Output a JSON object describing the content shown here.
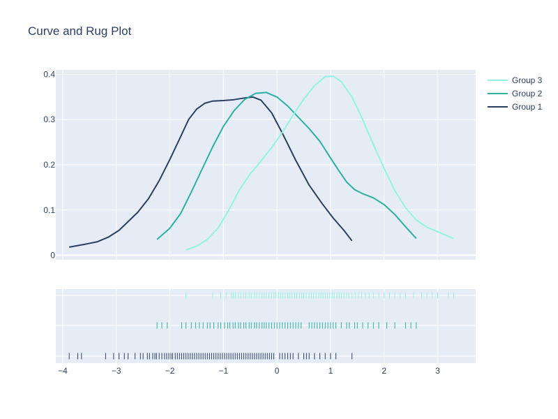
{
  "chart_data": {
    "type": "line",
    "title": "Curve and Rug Plot",
    "xlim": [
      -4.13,
      3.71
    ],
    "ylim": [
      -0.01,
      0.41
    ],
    "x_ticks": [
      -4,
      -3,
      -2,
      -1,
      0,
      1,
      2,
      3
    ],
    "y_ticks": [
      0,
      0.1,
      0.2,
      0.3,
      0.4
    ],
    "y_tick_labels": [
      "0",
      "0.1",
      "0.2",
      "0.3",
      "0.4"
    ],
    "grid": true,
    "legend_position": "top-right",
    "series": [
      {
        "name": "Group 1",
        "color": "#2a3f5f",
        "x": [
          -3.88,
          -3.6,
          -3.35,
          -3.15,
          -2.95,
          -2.8,
          -2.6,
          -2.4,
          -2.2,
          -2.0,
          -1.8,
          -1.65,
          -1.5,
          -1.35,
          -1.2,
          -1.0,
          -0.8,
          -0.6,
          -0.45,
          -0.3,
          -0.1,
          0.1,
          0.35,
          0.6,
          0.85,
          1.05,
          1.25,
          1.4
        ],
        "y": [
          0.018,
          0.024,
          0.03,
          0.04,
          0.055,
          0.072,
          0.095,
          0.125,
          0.165,
          0.212,
          0.262,
          0.3,
          0.323,
          0.336,
          0.341,
          0.342,
          0.344,
          0.348,
          0.35,
          0.343,
          0.315,
          0.27,
          0.21,
          0.155,
          0.113,
          0.082,
          0.055,
          0.032
        ]
      },
      {
        "name": "Group 2",
        "color": "#2bb19e",
        "x": [
          -2.24,
          -2.0,
          -1.8,
          -1.6,
          -1.4,
          -1.2,
          -1.0,
          -0.8,
          -0.6,
          -0.4,
          -0.2,
          0.0,
          0.2,
          0.4,
          0.6,
          0.8,
          1.0,
          1.15,
          1.3,
          1.45,
          1.6,
          1.8,
          2.0,
          2.2,
          2.4,
          2.6
        ],
        "y": [
          0.035,
          0.06,
          0.092,
          0.14,
          0.19,
          0.24,
          0.285,
          0.32,
          0.345,
          0.358,
          0.36,
          0.35,
          0.33,
          0.305,
          0.28,
          0.252,
          0.215,
          0.188,
          0.162,
          0.145,
          0.136,
          0.127,
          0.112,
          0.09,
          0.063,
          0.037
        ]
      },
      {
        "name": "Group 3",
        "color": "#93f3e1",
        "x": [
          -1.7,
          -1.5,
          -1.3,
          -1.1,
          -0.9,
          -0.7,
          -0.5,
          -0.3,
          -0.1,
          0.1,
          0.3,
          0.5,
          0.7,
          0.9,
          1.05,
          1.2,
          1.4,
          1.6,
          1.8,
          2.0,
          2.2,
          2.4,
          2.6,
          2.8,
          3.0,
          3.2,
          3.3
        ],
        "y": [
          0.012,
          0.02,
          0.035,
          0.06,
          0.1,
          0.145,
          0.18,
          0.208,
          0.238,
          0.272,
          0.31,
          0.345,
          0.375,
          0.395,
          0.396,
          0.384,
          0.35,
          0.3,
          0.245,
          0.192,
          0.143,
          0.105,
          0.078,
          0.062,
          0.052,
          0.042,
          0.037
        ]
      }
    ],
    "rug": [
      {
        "name": "Group 3",
        "color": "#93f3e1",
        "x": [
          -1.7,
          -1.2,
          -1.05,
          -0.95,
          -0.85,
          -0.82,
          -0.78,
          -0.72,
          -0.68,
          -0.62,
          -0.58,
          -0.52,
          -0.48,
          -0.42,
          -0.38,
          -0.33,
          -0.28,
          -0.24,
          -0.2,
          -0.15,
          -0.1,
          -0.06,
          -0.02,
          0.03,
          0.07,
          0.11,
          0.15,
          0.2,
          0.24,
          0.28,
          0.33,
          0.37,
          0.42,
          0.46,
          0.5,
          0.55,
          0.6,
          0.64,
          0.68,
          0.73,
          0.78,
          0.82,
          0.86,
          0.9,
          0.94,
          0.98,
          1.03,
          1.07,
          1.12,
          1.16,
          1.2,
          1.25,
          1.3,
          1.34,
          1.4,
          1.46,
          1.52,
          1.58,
          1.65,
          1.72,
          1.8,
          1.9,
          2.0,
          2.1,
          2.2,
          2.3,
          2.4,
          2.55,
          2.7,
          2.8,
          2.9,
          3.0,
          3.2,
          3.3
        ]
      },
      {
        "name": "Group 2",
        "color": "#2bb19e",
        "x": [
          -2.24,
          -2.15,
          -2.05,
          -1.78,
          -1.7,
          -1.6,
          -1.52,
          -1.45,
          -1.38,
          -1.3,
          -1.25,
          -1.18,
          -1.1,
          -1.05,
          -0.98,
          -0.92,
          -0.88,
          -0.82,
          -0.78,
          -0.72,
          -0.68,
          -0.62,
          -0.58,
          -0.52,
          -0.48,
          -0.42,
          -0.38,
          -0.33,
          -0.28,
          -0.24,
          -0.2,
          -0.15,
          -0.1,
          -0.05,
          0.0,
          0.05,
          0.1,
          0.15,
          0.2,
          0.25,
          0.3,
          0.35,
          0.4,
          0.45,
          0.6,
          0.65,
          0.7,
          0.75,
          0.8,
          0.85,
          0.9,
          0.95,
          1.0,
          1.05,
          1.1,
          1.2,
          1.3,
          1.35,
          1.45,
          1.5,
          1.6,
          1.7,
          1.8,
          1.9,
          2.05,
          2.2,
          2.4,
          2.5,
          2.6
        ]
      },
      {
        "name": "Group 1",
        "color": "#2a3f5f",
        "x": [
          -3.88,
          -3.72,
          -3.65,
          -3.2,
          -3.05,
          -2.95,
          -2.85,
          -2.78,
          -2.65,
          -2.55,
          -2.5,
          -2.42,
          -2.38,
          -2.32,
          -2.28,
          -2.25,
          -2.2,
          -2.15,
          -2.1,
          -2.06,
          -2.02,
          -1.98,
          -1.95,
          -1.9,
          -1.86,
          -1.82,
          -1.78,
          -1.74,
          -1.7,
          -1.66,
          -1.62,
          -1.58,
          -1.54,
          -1.5,
          -1.46,
          -1.42,
          -1.38,
          -1.34,
          -1.3,
          -1.26,
          -1.22,
          -1.18,
          -1.14,
          -1.1,
          -1.06,
          -1.02,
          -0.98,
          -0.94,
          -0.9,
          -0.86,
          -0.82,
          -0.78,
          -0.74,
          -0.7,
          -0.66,
          -0.62,
          -0.58,
          -0.54,
          -0.5,
          -0.46,
          -0.42,
          -0.38,
          -0.34,
          -0.3,
          -0.26,
          -0.22,
          -0.18,
          -0.14,
          -0.1,
          -0.06,
          0.05,
          0.1,
          0.15,
          0.2,
          0.25,
          0.3,
          0.4,
          0.5,
          0.55,
          0.6,
          0.7,
          0.8,
          0.9,
          1.0,
          1.1,
          1.4
        ]
      }
    ]
  }
}
